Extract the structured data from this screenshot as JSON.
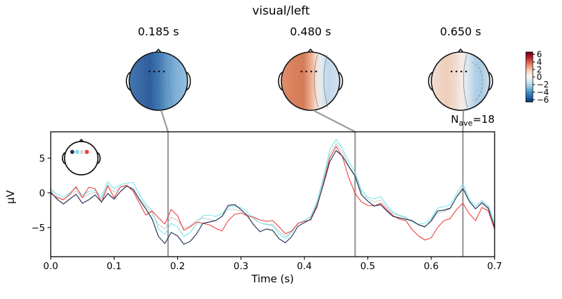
{
  "title": "visual/left",
  "nave": {
    "n": "N",
    "sub": "ave",
    "eq": "=18"
  },
  "colors": {
    "vline_gray": "#9b9b9b",
    "axis_black": "#000000",
    "head_outline": "#111111",
    "contour_gray": "#777777"
  },
  "topomaps": [
    {
      "time_label": "0.185 s",
      "time_s": 0.185,
      "gradient": [
        [
          0,
          "#4479b2"
        ],
        [
          15,
          "#3a6ca7"
        ],
        [
          35,
          "#2f5f9c"
        ],
        [
          50,
          "#3f76b1"
        ],
        [
          64,
          "#6098c9"
        ],
        [
          80,
          "#7fb0d7"
        ],
        [
          100,
          "#93c0de"
        ]
      ],
      "contours": [
        {
          "type": "line",
          "dx": 4,
          "dashed": true
        },
        {
          "type": "line",
          "dx": 16,
          "dashed": true
        }
      ]
    },
    {
      "time_label": "0.480 s",
      "time_s": 0.48,
      "gradient": [
        [
          0,
          "#df8e6d"
        ],
        [
          20,
          "#d8815c"
        ],
        [
          38,
          "#d47c58"
        ],
        [
          52,
          "#ecb296"
        ],
        [
          60,
          "#f7e0d4"
        ],
        [
          68,
          "#e4ecf2"
        ],
        [
          80,
          "#c2d8ea"
        ],
        [
          90,
          "#c9dcec"
        ],
        [
          100,
          "#d3e2ee"
        ]
      ],
      "contours": [
        {
          "type": "line",
          "dx": 6,
          "dashed": false
        },
        {
          "type": "line",
          "dx": 20,
          "dashed": false
        }
      ]
    },
    {
      "time_label": "0.650 s",
      "time_s": 0.65,
      "gradient": [
        [
          0,
          "#f2dfd5"
        ],
        [
          25,
          "#eeceb9"
        ],
        [
          40,
          "#f0d9cb"
        ],
        [
          52,
          "#f5ece7"
        ],
        [
          62,
          "#dce8f1"
        ],
        [
          75,
          "#b3d0e5"
        ],
        [
          85,
          "#a9cbe2"
        ],
        [
          100,
          "#cddfee"
        ]
      ],
      "contours": [
        {
          "type": "line",
          "dx": 5,
          "dashed": false
        },
        {
          "type": "blob",
          "dx": 22,
          "dashed": true
        }
      ]
    }
  ],
  "colorbar": {
    "tick_labels": [
      "6",
      "4",
      "2",
      "0",
      "−2",
      "−4",
      "−6"
    ],
    "tick_values": [
      6,
      4,
      2,
      0,
      -2,
      -4,
      -6
    ],
    "gradient": [
      [
        0,
        "#67001f"
      ],
      [
        10,
        "#b2182b"
      ],
      [
        20,
        "#d6604d"
      ],
      [
        30,
        "#f4a582"
      ],
      [
        40,
        "#fddbc7"
      ],
      [
        50,
        "#f7f7f7"
      ],
      [
        60,
        "#d1e5f0"
      ],
      [
        70,
        "#92c5de"
      ],
      [
        80,
        "#4393c3"
      ],
      [
        90,
        "#2166ac"
      ],
      [
        100,
        "#053061"
      ]
    ]
  },
  "axes": {
    "xlabel": "Time (s)",
    "ylabel": "µV",
    "xtick_labels": [
      "0.0",
      "0.1",
      "0.2",
      "0.3",
      "0.4",
      "0.5",
      "0.6",
      "0.7"
    ],
    "xtick_values": [
      0,
      0.1,
      0.2,
      0.3,
      0.4,
      0.5,
      0.6,
      0.7
    ],
    "ytick_labels": [
      "5",
      "0",
      "−5"
    ],
    "ytick_values": [
      5,
      0,
      -5
    ]
  },
  "inset_head": {
    "sensor_colors": [
      "#28375a",
      "#78e4ec",
      "#d6dbdd",
      "#ef3d3b"
    ]
  },
  "chart_data": {
    "type": "line",
    "title": "visual/left",
    "xlabel": "Time (s)",
    "ylabel": "µV",
    "xlim": [
      0.0,
      0.7
    ],
    "ylim": [
      -9.2,
      8.8
    ],
    "x_unit": "s",
    "x_start": 0.0,
    "x_step": 0.01,
    "n_points": 71,
    "vlines": [
      0.185,
      0.48,
      0.65
    ],
    "n_ave": 18,
    "grid": false,
    "legend": "none",
    "series": [
      {
        "name": "eeg-channel-gray",
        "color": "#c6cccf",
        "width": 1.1,
        "values": [
          0.4,
          -0.5,
          -0.9,
          -0.4,
          0.3,
          -0.7,
          -0.2,
          0.1,
          -0.9,
          1.2,
          0.1,
          0.8,
          0.9,
          0.7,
          -0.8,
          -1.9,
          -3.0,
          -4.6,
          -5.2,
          -3.5,
          -4.0,
          -5.1,
          -4.7,
          -3.9,
          -3.6,
          -3.8,
          -4.0,
          -3.4,
          -2.3,
          -2.4,
          -2.6,
          -3.1,
          -3.8,
          -4.3,
          -4.5,
          -4.6,
          -5.5,
          -6.3,
          -5.6,
          -4.4,
          -4.0,
          -3.5,
          -1.4,
          1.8,
          5.5,
          7.1,
          5.9,
          3.9,
          2.6,
          0.0,
          -0.9,
          -1.3,
          -1.1,
          -2.1,
          -3.0,
          -3.3,
          -3.6,
          -4.2,
          -4.6,
          -4.8,
          -4.2,
          -2.9,
          -2.7,
          -2.3,
          -0.6,
          0.9,
          -1.3,
          -2.3,
          -1.6,
          -2.4,
          -4.8
        ]
      },
      {
        "name": "eeg-channel-cyan",
        "color": "#78e4ec",
        "width": 1.1,
        "values": [
          0.6,
          -0.2,
          -0.6,
          0.0,
          0.7,
          -0.3,
          0.2,
          0.4,
          -0.6,
          1.6,
          0.6,
          1.2,
          1.4,
          1.5,
          -0.3,
          -1.6,
          -2.6,
          -5.2,
          -6.0,
          -4.4,
          -4.9,
          -6.3,
          -5.7,
          -4.5,
          -3.3,
          -3.2,
          -3.4,
          -3.0,
          -2.0,
          -1.9,
          -2.1,
          -2.8,
          -3.6,
          -4.3,
          -4.6,
          -4.7,
          -5.9,
          -6.6,
          -5.7,
          -4.4,
          -4.0,
          -3.4,
          -1.2,
          2.2,
          6.2,
          7.7,
          6.4,
          4.5,
          3.0,
          0.4,
          -0.6,
          -0.9,
          -0.5,
          -1.8,
          -2.8,
          -3.2,
          -3.5,
          -4.2,
          -4.5,
          -4.4,
          -3.7,
          -2.2,
          -2.0,
          -1.7,
          -0.1,
          1.3,
          -0.9,
          -1.9,
          -1.1,
          -1.9,
          -4.4
        ]
      },
      {
        "name": "eeg-channel-red",
        "color": "#ef3d3b",
        "width": 1.1,
        "values": [
          -0.1,
          -0.7,
          -1.0,
          -0.2,
          0.9,
          -0.7,
          0.8,
          0.6,
          -1.4,
          1.0,
          -0.7,
          0.9,
          1.1,
          0.2,
          -1.5,
          -3.2,
          -2.6,
          -3.6,
          -4.5,
          -2.4,
          -3.3,
          -5.4,
          -4.9,
          -4.2,
          -4.4,
          -4.6,
          -5.1,
          -5.5,
          -4.0,
          -3.1,
          -2.9,
          -3.3,
          -3.5,
          -3.9,
          -4.1,
          -4.0,
          -4.9,
          -5.9,
          -5.5,
          -4.4,
          -4.1,
          -3.9,
          -2.0,
          1.4,
          5.0,
          6.7,
          5.2,
          2.2,
          -0.1,
          -1.3,
          -1.8,
          -1.9,
          -1.5,
          -2.4,
          -3.3,
          -3.8,
          -4.0,
          -5.3,
          -6.2,
          -6.8,
          -6.5,
          -5.0,
          -4.0,
          -3.7,
          -2.4,
          -1.5,
          -3.0,
          -4.0,
          -2.1,
          -2.6,
          -5.3
        ]
      },
      {
        "name": "eeg-channel-navy",
        "color": "#28375a",
        "width": 1.2,
        "values": [
          0.1,
          -0.9,
          -1.6,
          -0.9,
          -0.2,
          -1.5,
          -1.0,
          -0.3,
          -1.3,
          -0.1,
          -0.9,
          0.2,
          1.0,
          0.5,
          -1.0,
          -2.3,
          -3.8,
          -6.3,
          -7.3,
          -5.7,
          -6.2,
          -7.4,
          -7.0,
          -5.9,
          -4.4,
          -4.2,
          -4.0,
          -3.4,
          -1.8,
          -1.7,
          -2.4,
          -3.3,
          -4.6,
          -5.6,
          -5.2,
          -5.4,
          -6.6,
          -7.2,
          -6.3,
          -4.8,
          -4.3,
          -3.8,
          -1.8,
          1.2,
          4.5,
          6.1,
          5.3,
          3.8,
          2.4,
          -0.3,
          -1.2,
          -1.9,
          -1.7,
          -2.6,
          -3.4,
          -3.6,
          -3.8,
          -4.0,
          -4.6,
          -4.9,
          -4.0,
          -2.6,
          -2.5,
          -2.2,
          -0.6,
          0.6,
          -1.2,
          -2.3,
          -1.4,
          -2.2,
          -5.0
        ]
      }
    ]
  }
}
